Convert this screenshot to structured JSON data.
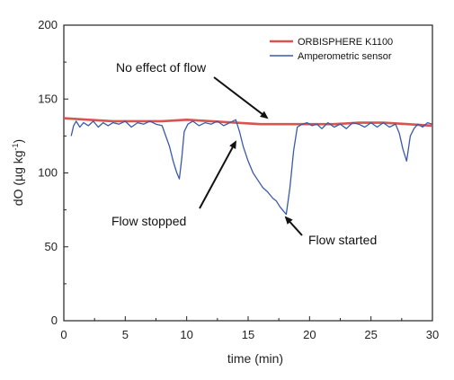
{
  "chart_data": {
    "type": "line",
    "xlabel": "time (min)",
    "ylabel": "dO (µg kg",
    "ylabel_sup": "-1",
    "ylabel_close": ")",
    "xlim": [
      0,
      30
    ],
    "ylim": [
      0,
      200
    ],
    "xticks": [
      0,
      5,
      10,
      15,
      20,
      25,
      30
    ],
    "yticks": [
      0,
      50,
      100,
      150,
      200
    ],
    "grid": false,
    "legend_position": "top-right",
    "series": [
      {
        "name": "ORBISPHERE K1100",
        "color": "#d9534f",
        "x": [
          0,
          2,
          4,
          6,
          8,
          10,
          12,
          14,
          16,
          18,
          20,
          22,
          24,
          26,
          28,
          30
        ],
        "y": [
          137,
          136,
          135,
          135,
          135,
          136,
          135,
          134,
          133,
          133,
          133,
          133,
          134,
          134,
          133,
          132
        ]
      },
      {
        "name": "Amperometric sensor",
        "color": "#3a5aa8",
        "x": [
          0.6,
          0.8,
          1.0,
          1.3,
          1.6,
          2.0,
          2.4,
          2.8,
          3.2,
          3.6,
          4.0,
          4.5,
          5.0,
          5.5,
          6.0,
          6.5,
          7.0,
          7.5,
          8.0,
          8.3,
          8.6,
          8.9,
          9.2,
          9.4,
          9.6,
          9.8,
          10.1,
          10.5,
          11.0,
          11.5,
          12.0,
          12.5,
          13.0,
          13.5,
          14.0,
          14.3,
          14.6,
          15.0,
          15.4,
          15.8,
          16.2,
          16.6,
          17.0,
          17.3,
          17.6,
          17.9,
          18.1,
          18.4,
          18.7,
          19.0,
          19.4,
          19.8,
          20.2,
          20.6,
          21.0,
          21.5,
          22.0,
          22.5,
          23.0,
          23.5,
          24.0,
          24.5,
          25.0,
          25.5,
          26.0,
          26.5,
          27.0,
          27.3,
          27.6,
          27.9,
          28.2,
          28.5,
          28.8,
          29.2,
          29.6,
          30.0
        ],
        "y": [
          125,
          132,
          135,
          131,
          134,
          132,
          135,
          131,
          134,
          132,
          134,
          133,
          135,
          131,
          134,
          133,
          135,
          133,
          132,
          125,
          118,
          108,
          100,
          96,
          110,
          128,
          133,
          135,
          132,
          134,
          133,
          135,
          132,
          134,
          136,
          128,
          118,
          108,
          100,
          95,
          90,
          87,
          83,
          81,
          77,
          74,
          72,
          90,
          115,
          131,
          133,
          134,
          132,
          133,
          130,
          134,
          131,
          133,
          130,
          134,
          133,
          131,
          134,
          131,
          134,
          131,
          133,
          127,
          116,
          108,
          125,
          130,
          133,
          131,
          134,
          133
        ]
      }
    ],
    "annotations": [
      {
        "text": "No effect of flow",
        "arrow_to": [
          16.6,
          134
        ]
      },
      {
        "text": "Flow stopped",
        "arrow_to": [
          14.3,
          132
        ]
      },
      {
        "text": "Flow started",
        "arrow_to": [
          18.3,
          72
        ]
      }
    ]
  }
}
